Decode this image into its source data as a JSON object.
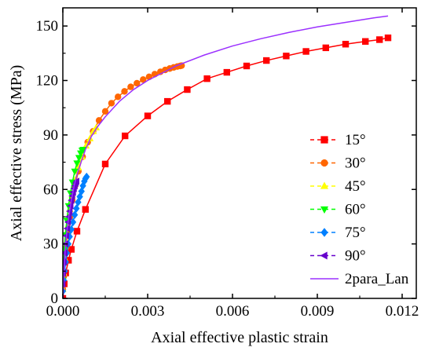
{
  "chart_data": {
    "type": "line",
    "title": "",
    "xlabel": "Axial effective plastic strain",
    "ylabel": "Axial effective stress (MPa)",
    "xlim": [
      0,
      0.0125
    ],
    "ylim": [
      0,
      160
    ],
    "xticks": [
      0.0,
      0.003,
      0.006,
      0.009,
      0.012
    ],
    "xtick_labels": [
      "0.000",
      "0.003",
      "0.006",
      "0.009",
      "0.012"
    ],
    "yticks": [
      0,
      30,
      60,
      90,
      120,
      150
    ],
    "ytick_labels": [
      "0",
      "30",
      "60",
      "90",
      "120",
      "150"
    ],
    "grid": false,
    "legend_position": "right",
    "series": [
      {
        "name": "15°",
        "color": "#ff0000",
        "marker": "square",
        "x": [
          0,
          5e-05,
          0.0001,
          0.0002,
          0.0003,
          0.0005,
          0.0008,
          0.0015,
          0.0022,
          0.003,
          0.0037,
          0.0044,
          0.0051,
          0.0058,
          0.0065,
          0.0072,
          0.0079,
          0.0086,
          0.0093,
          0.01,
          0.0107,
          0.0112,
          0.0115
        ],
        "y": [
          0,
          8,
          14,
          21,
          27,
          37,
          49,
          74,
          89.5,
          100.5,
          108.5,
          115,
          121,
          124.5,
          128,
          131,
          133.5,
          136,
          138,
          140,
          141.5,
          142.5,
          143.5
        ]
      },
      {
        "name": "30°",
        "color": "#ff6600",
        "marker": "circle",
        "x": [
          0,
          3e-05,
          7e-05,
          0.00012,
          0.00018,
          0.00025,
          0.00033,
          0.00043,
          0.00055,
          0.0007,
          0.00088,
          0.00107,
          0.00128,
          0.0015,
          0.00172,
          0.00195,
          0.00218,
          0.0024,
          0.00262,
          0.00284,
          0.00305,
          0.00325,
          0.00345,
          0.00362,
          0.00378,
          0.00392,
          0.00405,
          0.00415,
          0.0042
        ],
        "y": [
          5,
          12,
          20,
          28,
          36,
          45,
          54,
          62,
          70,
          78,
          86,
          92,
          98,
          103,
          107.5,
          111,
          114,
          116.5,
          118.5,
          120.5,
          122,
          123.5,
          124.8,
          125.8,
          126.6,
          127.2,
          127.7,
          128,
          128.2
        ]
      },
      {
        "name": "45°",
        "color": "#ffff00",
        "marker": "triangle-up",
        "x": [
          0,
          3e-05,
          7e-05,
          0.00012,
          0.00018,
          0.00025,
          0.00033,
          0.00043,
          0.00055,
          0.00068,
          0.00082,
          0.00096,
          0.00108,
          0.00118
        ],
        "y": [
          5,
          14,
          22,
          31,
          40,
          49,
          57,
          65,
          72,
          78,
          84,
          88,
          92,
          94
        ]
      },
      {
        "name": "60°",
        "color": "#00ff00",
        "marker": "triangle-down",
        "x": [
          0,
          2e-05,
          5e-05,
          9e-05,
          0.00014,
          0.0002,
          0.00027,
          0.00034,
          0.00042,
          0.0005,
          0.00057,
          0.00063,
          0.00068,
          0.00072
        ],
        "y": [
          10,
          18,
          27,
          35,
          43,
          51,
          58,
          64,
          70,
          74.5,
          77.5,
          80,
          81.5,
          82
        ]
      },
      {
        "name": "75°",
        "color": "#0080ff",
        "marker": "diamond",
        "x": [
          0,
          3e-05,
          6e-05,
          0.0001,
          0.00014,
          0.00019,
          0.00024,
          0.0003,
          0.00036,
          0.00042,
          0.00048,
          0.00054,
          0.0006,
          0.00066,
          0.00071,
          0.00076,
          0.0008,
          0.00084
        ],
        "y": [
          4,
          10,
          15,
          20,
          25,
          30,
          34,
          38,
          42,
          46,
          49.5,
          53,
          56,
          59,
          62,
          64.5,
          66,
          67
        ]
      },
      {
        "name": "90°",
        "color": "#6600cc",
        "marker": "triangle-left",
        "x": [
          0,
          2e-05,
          4e-05,
          7e-05,
          0.0001,
          0.00013,
          0.00016,
          0.00019,
          0.00022,
          0.00025,
          0.00028,
          0.00031,
          0.00034,
          0.00037,
          0.0004,
          0.00043,
          0.00046,
          0.00049
        ],
        "y": [
          8,
          14,
          20,
          25,
          30,
          34.5,
          38.5,
          42,
          45,
          48,
          51,
          54,
          56.5,
          58.5,
          60.5,
          62,
          63.5,
          64.5
        ]
      },
      {
        "name": "2para_Lan",
        "color": "#9b30ff",
        "marker": "none",
        "x": [
          1e-05,
          3e-05,
          6e-05,
          0.0001,
          0.00015,
          0.0002,
          0.0003,
          0.0004,
          0.0005,
          0.0006,
          0.0008,
          0.001,
          0.0012,
          0.0015,
          0.002,
          0.0025,
          0.003,
          0.0035,
          0.004,
          0.005,
          0.006,
          0.007,
          0.008,
          0.009,
          0.01,
          0.011,
          0.0115
        ],
        "y": [
          0,
          10,
          20,
          30,
          38,
          44,
          54,
          62,
          68,
          73,
          82,
          89,
          94,
          100,
          108.5,
          115,
          120,
          124,
          128,
          134,
          139,
          143,
          146.5,
          149.5,
          152,
          154.5,
          155.5
        ]
      }
    ]
  }
}
